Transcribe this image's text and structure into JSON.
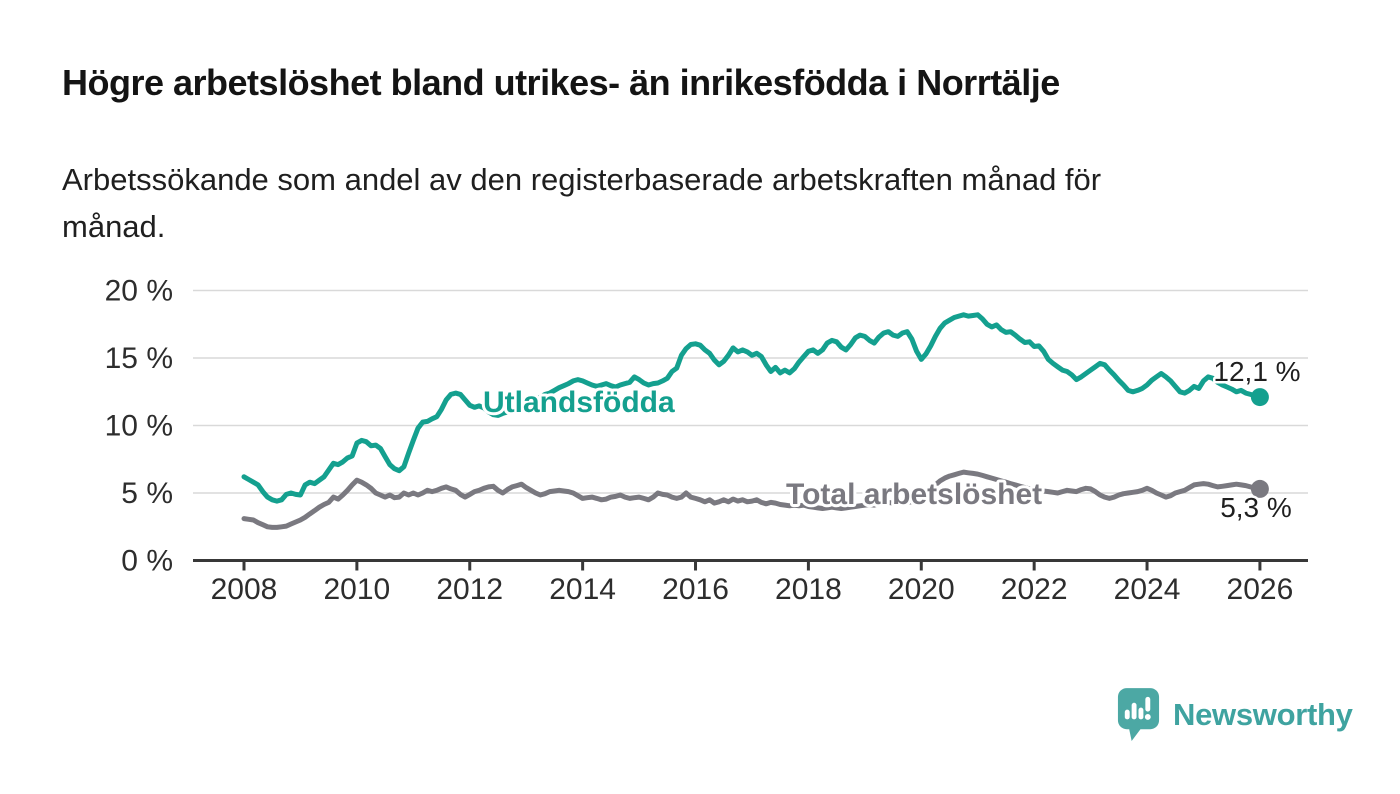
{
  "header": {
    "title": "Högre arbetslöshet bland utrikes- än inrikesfödda i Norrtälje",
    "subtitle_lines": [
      "Arbetssökande som andel av den registerbaserade arbetskraften månad för",
      "månad."
    ]
  },
  "branding": {
    "logo_text": "Newsworthy",
    "logo_icon": "speech-bubble-bar-chart-icon",
    "icon_color": "#4ca8a4",
    "text_color": "#3fa3a0"
  },
  "chart_data": {
    "type": "line",
    "title": "Högre arbetslöshet bland utrikes- än inrikesfödda i Norrtälje",
    "subtitle": "Arbetssökande som andel av den registerbaserade arbetskraften månad för månad.",
    "unit": "%",
    "grid": "horizontal",
    "legend_position": "inline-labels",
    "ylim": [
      0,
      20
    ],
    "x_start": "2008-01",
    "x_end": "2026-01",
    "points_per_year": 12,
    "y_ticks": [
      {
        "value": 0,
        "label": "0 %"
      },
      {
        "value": 5,
        "label": "5 %"
      },
      {
        "value": 10,
        "label": "10 %"
      },
      {
        "value": 15,
        "label": "15 %"
      },
      {
        "value": 20,
        "label": "20 %"
      }
    ],
    "x_ticks": [
      {
        "year": 2008,
        "label": "2008"
      },
      {
        "year": 2010,
        "label": "2010"
      },
      {
        "year": 2012,
        "label": "2012"
      },
      {
        "year": 2014,
        "label": "2014"
      },
      {
        "year": 2016,
        "label": "2016"
      },
      {
        "year": 2018,
        "label": "2018"
      },
      {
        "year": 2020,
        "label": "2020"
      },
      {
        "year": 2022,
        "label": "2022"
      },
      {
        "year": 2024,
        "label": "2024"
      },
      {
        "year": 2026,
        "label": "2026"
      }
    ],
    "series": [
      {
        "id": "utlandsfodda",
        "name": "Utlandsfödda",
        "color": "#14a08f",
        "end_value": 12.1,
        "end_label": "12,1 %",
        "values": [
          6.2,
          6.0,
          5.8,
          5.6,
          5.1,
          4.7,
          4.5,
          4.4,
          4.5,
          4.9,
          5.0,
          4.9,
          4.85,
          5.6,
          5.8,
          5.7,
          5.95,
          6.2,
          6.7,
          7.2,
          7.1,
          7.3,
          7.6,
          7.75,
          8.7,
          8.9,
          8.8,
          8.5,
          8.55,
          8.3,
          7.7,
          7.1,
          6.8,
          6.65,
          6.95,
          7.95,
          8.9,
          9.8,
          10.25,
          10.3,
          10.5,
          10.65,
          11.2,
          11.9,
          12.3,
          12.4,
          12.3,
          11.9,
          11.5,
          11.35,
          11.45,
          11.3,
          11.0,
          10.8,
          10.75,
          10.9,
          11.0,
          11.1,
          11.2,
          11.35,
          11.5,
          11.7,
          11.9,
          12.1,
          12.3,
          12.4,
          12.6,
          12.8,
          12.95,
          13.1,
          13.3,
          13.4,
          13.3,
          13.15,
          13.0,
          12.9,
          13.0,
          13.1,
          12.95,
          12.85,
          13.0,
          13.1,
          13.2,
          13.6,
          13.4,
          13.15,
          13.0,
          13.1,
          13.15,
          13.3,
          13.5,
          14.0,
          14.25,
          15.2,
          15.7,
          16.0,
          16.05,
          15.95,
          15.6,
          15.35,
          14.85,
          14.5,
          14.75,
          15.2,
          15.75,
          15.45,
          15.6,
          15.45,
          15.2,
          15.35,
          15.1,
          14.5,
          14.0,
          14.3,
          13.9,
          14.1,
          13.9,
          14.2,
          14.7,
          15.1,
          15.5,
          15.6,
          15.35,
          15.6,
          16.1,
          16.3,
          16.2,
          15.8,
          15.6,
          16.0,
          16.5,
          16.7,
          16.6,
          16.3,
          16.1,
          16.55,
          16.85,
          16.95,
          16.7,
          16.6,
          16.85,
          16.95,
          16.4,
          15.5,
          14.9,
          15.3,
          15.9,
          16.6,
          17.2,
          17.6,
          17.8,
          18.0,
          18.1,
          18.2,
          18.1,
          18.15,
          18.2,
          17.9,
          17.5,
          17.3,
          17.45,
          17.1,
          16.9,
          16.95,
          16.7,
          16.4,
          16.15,
          16.2,
          15.85,
          15.9,
          15.5,
          14.9,
          14.6,
          14.35,
          14.1,
          14.0,
          13.75,
          13.4,
          13.6,
          13.85,
          14.1,
          14.35,
          14.6,
          14.5,
          14.1,
          13.75,
          13.35,
          13.0,
          12.6,
          12.5,
          12.6,
          12.75,
          13.0,
          13.35,
          13.6,
          13.85,
          13.6,
          13.3,
          12.9,
          12.5,
          12.4,
          12.6,
          12.9,
          12.75,
          13.3,
          13.6,
          13.5,
          13.2,
          13.0,
          12.85,
          12.7,
          12.5,
          12.6,
          12.4,
          12.3,
          12.2,
          12.1
        ]
      },
      {
        "id": "total",
        "name": "Total arbetslöshet",
        "color": "#7a7980",
        "end_value": 5.3,
        "end_label": "5,3 %",
        "values": [
          3.1,
          3.05,
          3.0,
          2.8,
          2.65,
          2.5,
          2.45,
          2.45,
          2.5,
          2.55,
          2.7,
          2.85,
          3.0,
          3.2,
          3.45,
          3.7,
          3.95,
          4.15,
          4.3,
          4.7,
          4.55,
          4.85,
          5.2,
          5.6,
          5.95,
          5.8,
          5.6,
          5.35,
          5.0,
          4.85,
          4.7,
          4.85,
          4.65,
          4.7,
          5.0,
          4.85,
          5.0,
          4.85,
          5.0,
          5.2,
          5.1,
          5.2,
          5.35,
          5.45,
          5.3,
          5.2,
          4.9,
          4.7,
          4.9,
          5.1,
          5.2,
          5.35,
          5.45,
          5.5,
          5.2,
          5.0,
          5.25,
          5.45,
          5.55,
          5.65,
          5.4,
          5.2,
          5.0,
          4.85,
          4.95,
          5.1,
          5.15,
          5.2,
          5.15,
          5.1,
          5.0,
          4.8,
          4.6,
          4.65,
          4.7,
          4.6,
          4.5,
          4.55,
          4.7,
          4.75,
          4.85,
          4.7,
          4.6,
          4.65,
          4.7,
          4.6,
          4.5,
          4.7,
          5.0,
          4.9,
          4.85,
          4.7,
          4.6,
          4.7,
          5.0,
          4.7,
          4.6,
          4.5,
          4.35,
          4.5,
          4.25,
          4.35,
          4.5,
          4.35,
          4.55,
          4.4,
          4.5,
          4.35,
          4.4,
          4.5,
          4.3,
          4.2,
          4.3,
          4.25,
          4.15,
          4.1,
          4.05,
          4.1,
          4.05,
          4.1,
          4.0,
          3.95,
          3.9,
          3.85,
          3.9,
          3.95,
          3.9,
          3.85,
          3.9,
          3.95,
          4.0,
          4.05,
          4.1,
          4.15,
          4.1,
          4.2,
          4.25,
          4.3,
          4.25,
          4.3,
          4.35,
          4.3,
          4.35,
          4.4,
          4.5,
          4.65,
          5.1,
          5.6,
          5.9,
          6.1,
          6.25,
          6.35,
          6.45,
          6.55,
          6.5,
          6.45,
          6.4,
          6.3,
          6.2,
          6.1,
          6.0,
          5.9,
          5.8,
          5.7,
          5.6,
          5.5,
          5.4,
          5.3,
          5.25,
          5.2,
          5.15,
          5.1,
          5.05,
          5.0,
          5.1,
          5.2,
          5.15,
          5.1,
          5.25,
          5.35,
          5.3,
          5.1,
          4.85,
          4.7,
          4.6,
          4.7,
          4.85,
          4.95,
          5.0,
          5.05,
          5.1,
          5.2,
          5.35,
          5.2,
          5.0,
          4.85,
          4.7,
          4.8,
          5.0,
          5.1,
          5.2,
          5.4,
          5.6,
          5.65,
          5.7,
          5.65,
          5.55,
          5.45,
          5.5,
          5.55,
          5.6,
          5.65,
          5.6,
          5.55,
          5.45,
          5.35,
          5.3
        ]
      }
    ]
  }
}
